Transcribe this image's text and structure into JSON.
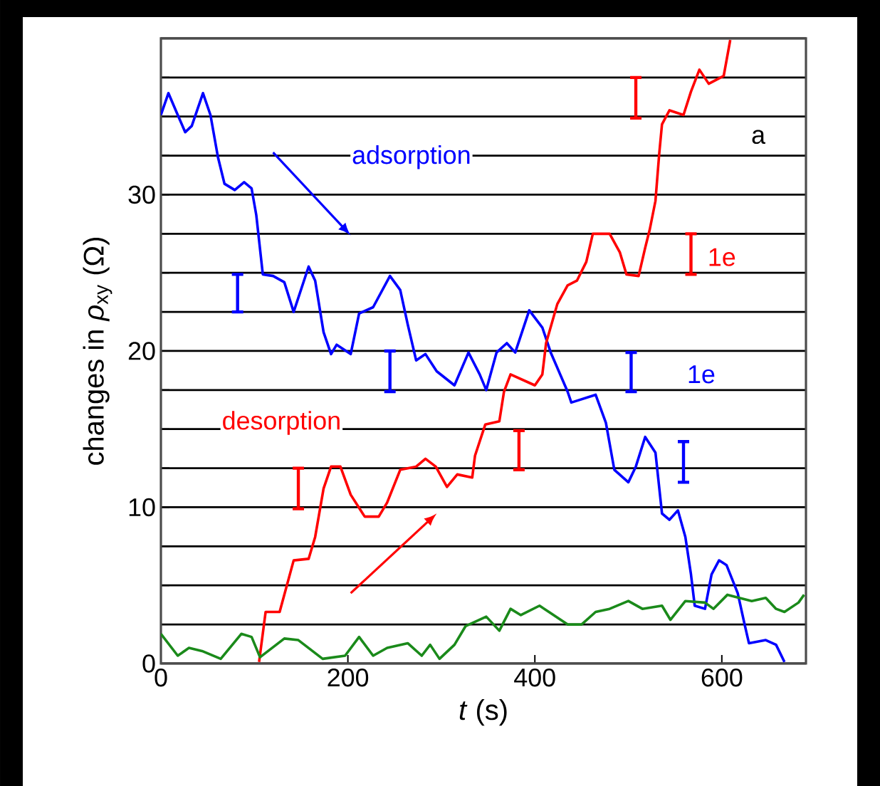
{
  "chart_data": {
    "type": "line",
    "xlabel": "*t* (s)",
    "ylabel": "changes in *ρ*$_{xy}$ (Ω)",
    "xlim": [
      0,
      690
    ],
    "ylim": [
      0,
      40
    ],
    "xticks": [
      0,
      200,
      400,
      600
    ],
    "yticks": [
      0,
      {
        "value": 2.5,
        "label": null
      },
      {
        "value": 5,
        "label": null
      },
      {
        "value": 7.5,
        "label": null
      },
      10,
      {
        "value": 12.5,
        "label": null
      },
      {
        "value": 15,
        "label": null
      },
      {
        "value": 17.5,
        "label": null
      },
      20,
      {
        "value": 22.5,
        "label": null
      },
      {
        "value": 25,
        "label": null
      },
      {
        "value": 27.5,
        "label": null
      },
      30,
      {
        "value": 32.5,
        "label": null
      },
      {
        "value": 35,
        "label": null
      },
      {
        "value": 37.5,
        "label": null
      },
      {
        "value": 40,
        "label": null
      }
    ],
    "grid": "y",
    "marker": "none",
    "line_style": "solid",
    "annotations": [
      "adsorption",
      "desorption",
      "a",
      "1e",
      "1e"
    ],
    "series": [
      {
        "color": "#0000ff",
        "x": [
          0,
          8,
          18,
          26,
          33,
          45,
          53,
          61,
          68,
          79,
          89,
          97,
          102,
          109,
          120,
          132,
          142,
          158,
          165,
          174,
          182,
          188,
          203,
          212,
          227,
          245,
          256,
          264,
          273,
          283,
          295,
          314,
          329,
          341,
          348,
          359,
          370,
          379,
          394,
          408,
          417,
          435,
          439,
          465,
          476,
          485,
          500,
          508,
          518,
          529,
          536,
          544,
          553,
          561,
          567,
          571,
          582,
          589,
          597,
          605,
          617,
          624,
          629,
          647,
          658,
          667
        ],
        "values": [
          35.1,
          36.5,
          35.1,
          34,
          34.4,
          36.5,
          35.1,
          32.4,
          30.7,
          30.3,
          30.8,
          30.4,
          28.7,
          24.9,
          24.8,
          24.4,
          22.5,
          25.4,
          24.5,
          21.2,
          19.8,
          20.4,
          19.8,
          22.4,
          22.8,
          24.8,
          23.9,
          21.7,
          19.4,
          19.8,
          18.7,
          17.8,
          19.9,
          18.5,
          17.5,
          19.9,
          20.5,
          19.9,
          22.6,
          21.5,
          19.9,
          17.4,
          16.7,
          17.2,
          15.4,
          12.4,
          11.6,
          12.6,
          14.5,
          13.5,
          9.6,
          9.2,
          9.8,
          8.1,
          5.7,
          3.7,
          3.5,
          5.7,
          6.6,
          6.3,
          4.5,
          2.6,
          1.3,
          1.5,
          1.2,
          0.1
        ]
      },
      {
        "color": "#ff0000",
        "x": [
          105,
          112,
          127,
          142,
          158,
          165,
          174,
          182,
          192,
          203,
          218,
          233,
          242,
          256,
          273,
          283,
          294,
          306,
          317,
          333,
          336,
          347,
          362,
          367,
          374,
          400,
          408,
          412,
          424,
          435,
          445,
          455,
          462,
          480,
          491,
          498,
          511,
          518,
          523,
          529,
          533,
          536,
          544,
          559,
          567,
          576,
          586,
          602,
          609
        ],
        "values": [
          0.1,
          3.3,
          3.3,
          6.6,
          6.7,
          8.1,
          11.2,
          12.6,
          12.6,
          10.8,
          9.4,
          9.4,
          10.3,
          12.4,
          12.6,
          13.1,
          12.6,
          11.3,
          12.1,
          11.9,
          13.3,
          15.3,
          15.5,
          17.4,
          18.5,
          17.8,
          18.5,
          20.5,
          23,
          24.2,
          24.5,
          25.7,
          27.5,
          27.5,
          26.3,
          24.9,
          24.8,
          26.6,
          27.8,
          29.6,
          32.6,
          34.5,
          35.4,
          35.1,
          36.6,
          38,
          37.1,
          37.6,
          39.9
        ]
      },
      {
        "color": "#1a8a1a",
        "x": [
          0,
          18,
          30,
          44,
          64,
          86,
          97,
          106,
          132,
          147,
          173,
          197,
          212,
          227,
          242,
          264,
          279,
          288,
          298,
          314,
          326,
          348,
          362,
          374,
          385,
          405,
          415,
          435,
          450,
          465,
          480,
          500,
          515,
          536,
          545,
          561,
          582,
          591,
          606,
          632,
          647,
          658,
          667,
          682,
          688
        ],
        "values": [
          1.9,
          0.5,
          1,
          0.8,
          0.3,
          1.9,
          1.7,
          0.4,
          1.6,
          1.5,
          0.3,
          0.5,
          1.7,
          0.5,
          1,
          1.3,
          0.5,
          1.2,
          0.3,
          1.2,
          2.4,
          3,
          2.1,
          3.5,
          3.1,
          3.7,
          3.3,
          2.5,
          2.5,
          3.3,
          3.5,
          4,
          3.5,
          3.7,
          2.8,
          4,
          3.9,
          3.5,
          4.4,
          4,
          4.2,
          3.5,
          3.3,
          3.9,
          4.4
        ]
      }
    ]
  }
}
